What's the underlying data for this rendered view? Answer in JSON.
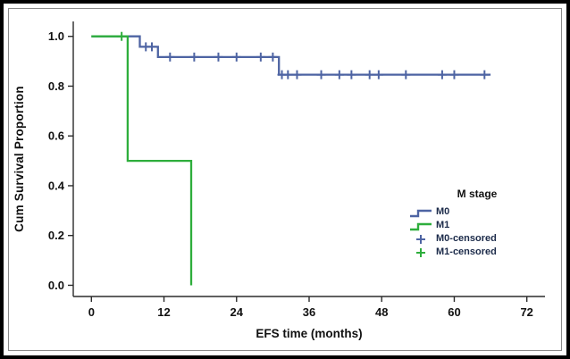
{
  "chart_data": {
    "type": "line",
    "subtype": "kaplan-meier-step-survival",
    "title": "",
    "xlabel": "EFS time (months)",
    "ylabel": "Cum Survival Proportion",
    "xlim": [
      -3,
      75
    ],
    "ylim": [
      -0.045,
      1.06
    ],
    "xticks": [
      0,
      12,
      24,
      36,
      48,
      60,
      72
    ],
    "yticks": [
      0.0,
      0.2,
      0.4,
      0.6,
      0.8,
      1.0
    ],
    "ytick_labels": [
      "0.0",
      "0.2",
      "0.4",
      "0.6",
      "0.8",
      "1.0"
    ],
    "grid": "off",
    "colors": {
      "m0": "#4e64a3",
      "m1": "#2eae3c",
      "axis": "#2b2b2b"
    },
    "legend": {
      "title": "M stage",
      "position": "right-middle",
      "entries": [
        {
          "label": "M0",
          "type": "line",
          "color": "#4e64a3"
        },
        {
          "label": "M1",
          "type": "line",
          "color": "#2eae3c"
        },
        {
          "label": "M0-censored",
          "type": "plus",
          "color": "#4e64a3"
        },
        {
          "label": "M1-censored",
          "type": "plus",
          "color": "#2eae3c"
        }
      ]
    },
    "series": [
      {
        "name": "M0",
        "color": "#4e64a3",
        "step_points": [
          [
            0,
            1.0
          ],
          [
            8,
            1.0
          ],
          [
            8,
            0.958
          ],
          [
            11,
            0.958
          ],
          [
            11,
            0.917
          ],
          [
            31,
            0.917
          ],
          [
            31,
            0.846
          ],
          [
            66,
            0.846
          ]
        ],
        "censored": [
          [
            9,
            0.958
          ],
          [
            10,
            0.958
          ],
          [
            13,
            0.917
          ],
          [
            17,
            0.917
          ],
          [
            21,
            0.917
          ],
          [
            24,
            0.917
          ],
          [
            28,
            0.917
          ],
          [
            30,
            0.917
          ],
          [
            31.5,
            0.846
          ],
          [
            32.5,
            0.846
          ],
          [
            34,
            0.846
          ],
          [
            38,
            0.846
          ],
          [
            41,
            0.846
          ],
          [
            43,
            0.846
          ],
          [
            46,
            0.846
          ],
          [
            47.5,
            0.846
          ],
          [
            52,
            0.846
          ],
          [
            58,
            0.846
          ],
          [
            60,
            0.846
          ],
          [
            65,
            0.846
          ]
        ]
      },
      {
        "name": "M1",
        "color": "#2eae3c",
        "step_points": [
          [
            0,
            1.0
          ],
          [
            6,
            1.0
          ],
          [
            6,
            0.5
          ],
          [
            16.5,
            0.5
          ],
          [
            16.5,
            0.0
          ]
        ],
        "censored": [
          [
            5,
            1.0
          ]
        ]
      }
    ]
  }
}
